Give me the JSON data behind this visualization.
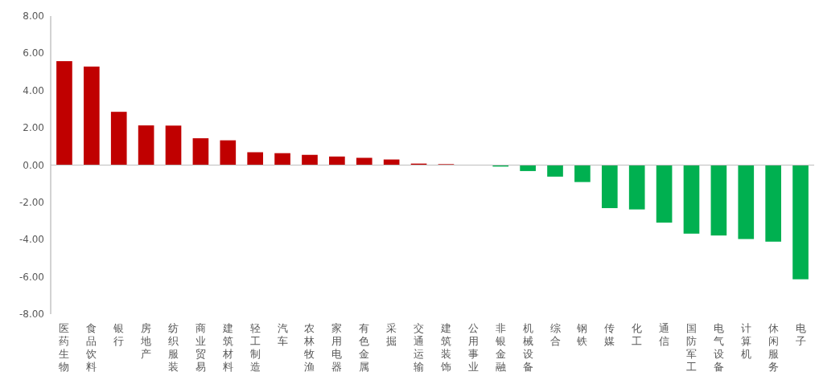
{
  "chart_data": {
    "type": "bar",
    "categories": [
      "医药生物",
      "食品饮料",
      "银行",
      "房地产",
      "纺织服装",
      "商业贸易",
      "建筑材料",
      "轻工制造",
      "汽车",
      "农林牧渔",
      "家用电器",
      "有色金属",
      "采掘",
      "交通运输",
      "建筑装饰",
      "公用事业",
      "非银金融",
      "机械设备",
      "综合",
      "钢铁",
      "传媒",
      "化工",
      "通信",
      "国防军工",
      "电气设备",
      "计算机",
      "休闲服务",
      "电子"
    ],
    "values": [
      5.58,
      5.29,
      2.86,
      2.13,
      2.12,
      1.44,
      1.33,
      0.69,
      0.64,
      0.55,
      0.46,
      0.39,
      0.3,
      0.08,
      0.05,
      null,
      -0.08,
      -0.32,
      -0.62,
      -0.91,
      -2.31,
      -2.38,
      -3.09,
      -3.68,
      -3.78,
      -3.97,
      -4.11,
      -6.13
    ],
    "colors": [
      "#c00000",
      "#c00000",
      "#c00000",
      "#c00000",
      "#c00000",
      "#c00000",
      "#c00000",
      "#c00000",
      "#c00000",
      "#c00000",
      "#c00000",
      "#c00000",
      "#c00000",
      "#c00000",
      "#c00000",
      null,
      "#00b050",
      "#00b050",
      "#00b050",
      "#00b050",
      "#00b050",
      "#00b050",
      "#00b050",
      "#00b050",
      "#00b050",
      "#00b050",
      "#00b050",
      "#00b050"
    ],
    "ylim": [
      -8,
      8
    ],
    "yticks": [
      {
        "value": -8,
        "label": "-8.00"
      },
      {
        "value": -6,
        "label": "-6.00"
      },
      {
        "value": -4,
        "label": "-4.00"
      },
      {
        "value": -2,
        "label": "-2.00"
      },
      {
        "value": 0,
        "label": "0.00"
      },
      {
        "value": 2,
        "label": "2.00"
      },
      {
        "value": 4,
        "label": "4.00"
      },
      {
        "value": 6,
        "label": "6.00"
      },
      {
        "value": 8,
        "label": "8.00"
      }
    ],
    "legend": false
  }
}
